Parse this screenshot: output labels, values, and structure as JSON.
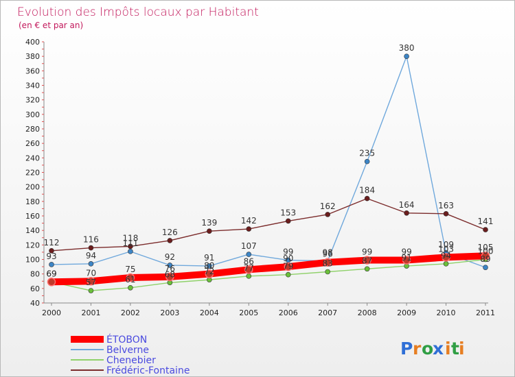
{
  "chart_data": {
    "type": "line",
    "title": "Evolution des Impôts locaux par Habitant",
    "subtitle": "(en € et par an)",
    "x": [
      "2000",
      "2001",
      "2002",
      "2003",
      "2004",
      "2005",
      "2006",
      "2007",
      "2008",
      "2009",
      "2010",
      "2011"
    ],
    "ylim": [
      40,
      400
    ],
    "yticks": [
      40,
      60,
      80,
      100,
      120,
      140,
      160,
      180,
      200,
      220,
      240,
      260,
      280,
      300,
      320,
      340,
      360,
      380,
      400
    ],
    "grid": false,
    "legend_position": "bottom-left",
    "series": [
      {
        "name": "ÉTOBON",
        "color": "#ff0000",
        "values": [
          69,
          70,
          75,
          76,
          80,
          86,
          90,
          96,
          99,
          99,
          103,
          105
        ]
      },
      {
        "name": "Belverne",
        "color": "#6fa8dc",
        "values": [
          93,
          94,
          111,
          92,
          91,
          107,
          99,
          98,
          235,
          380,
          109,
          89
        ]
      },
      {
        "name": "Chenebier",
        "color": "#8fd16a",
        "values": [
          69,
          57,
          61,
          68,
          72,
          77,
          79,
          83,
          87,
          91,
          94,
          100
        ]
      },
      {
        "name": "Frédéric-Fontaine",
        "color": "#7b2b2b",
        "values": [
          112,
          116,
          118,
          126,
          139,
          142,
          153,
          162,
          184,
          164,
          163,
          141
        ]
      }
    ]
  },
  "logo": {
    "text": "Proxiti",
    "letters": [
      "P",
      "r",
      "o",
      "x",
      "i",
      "t",
      "i"
    ],
    "colors": [
      "#2f6fd6",
      "#e67e22",
      "#2f9e44",
      "#2f6fd6",
      "#e67e22",
      "#2f9e44",
      "#e67e22"
    ]
  }
}
